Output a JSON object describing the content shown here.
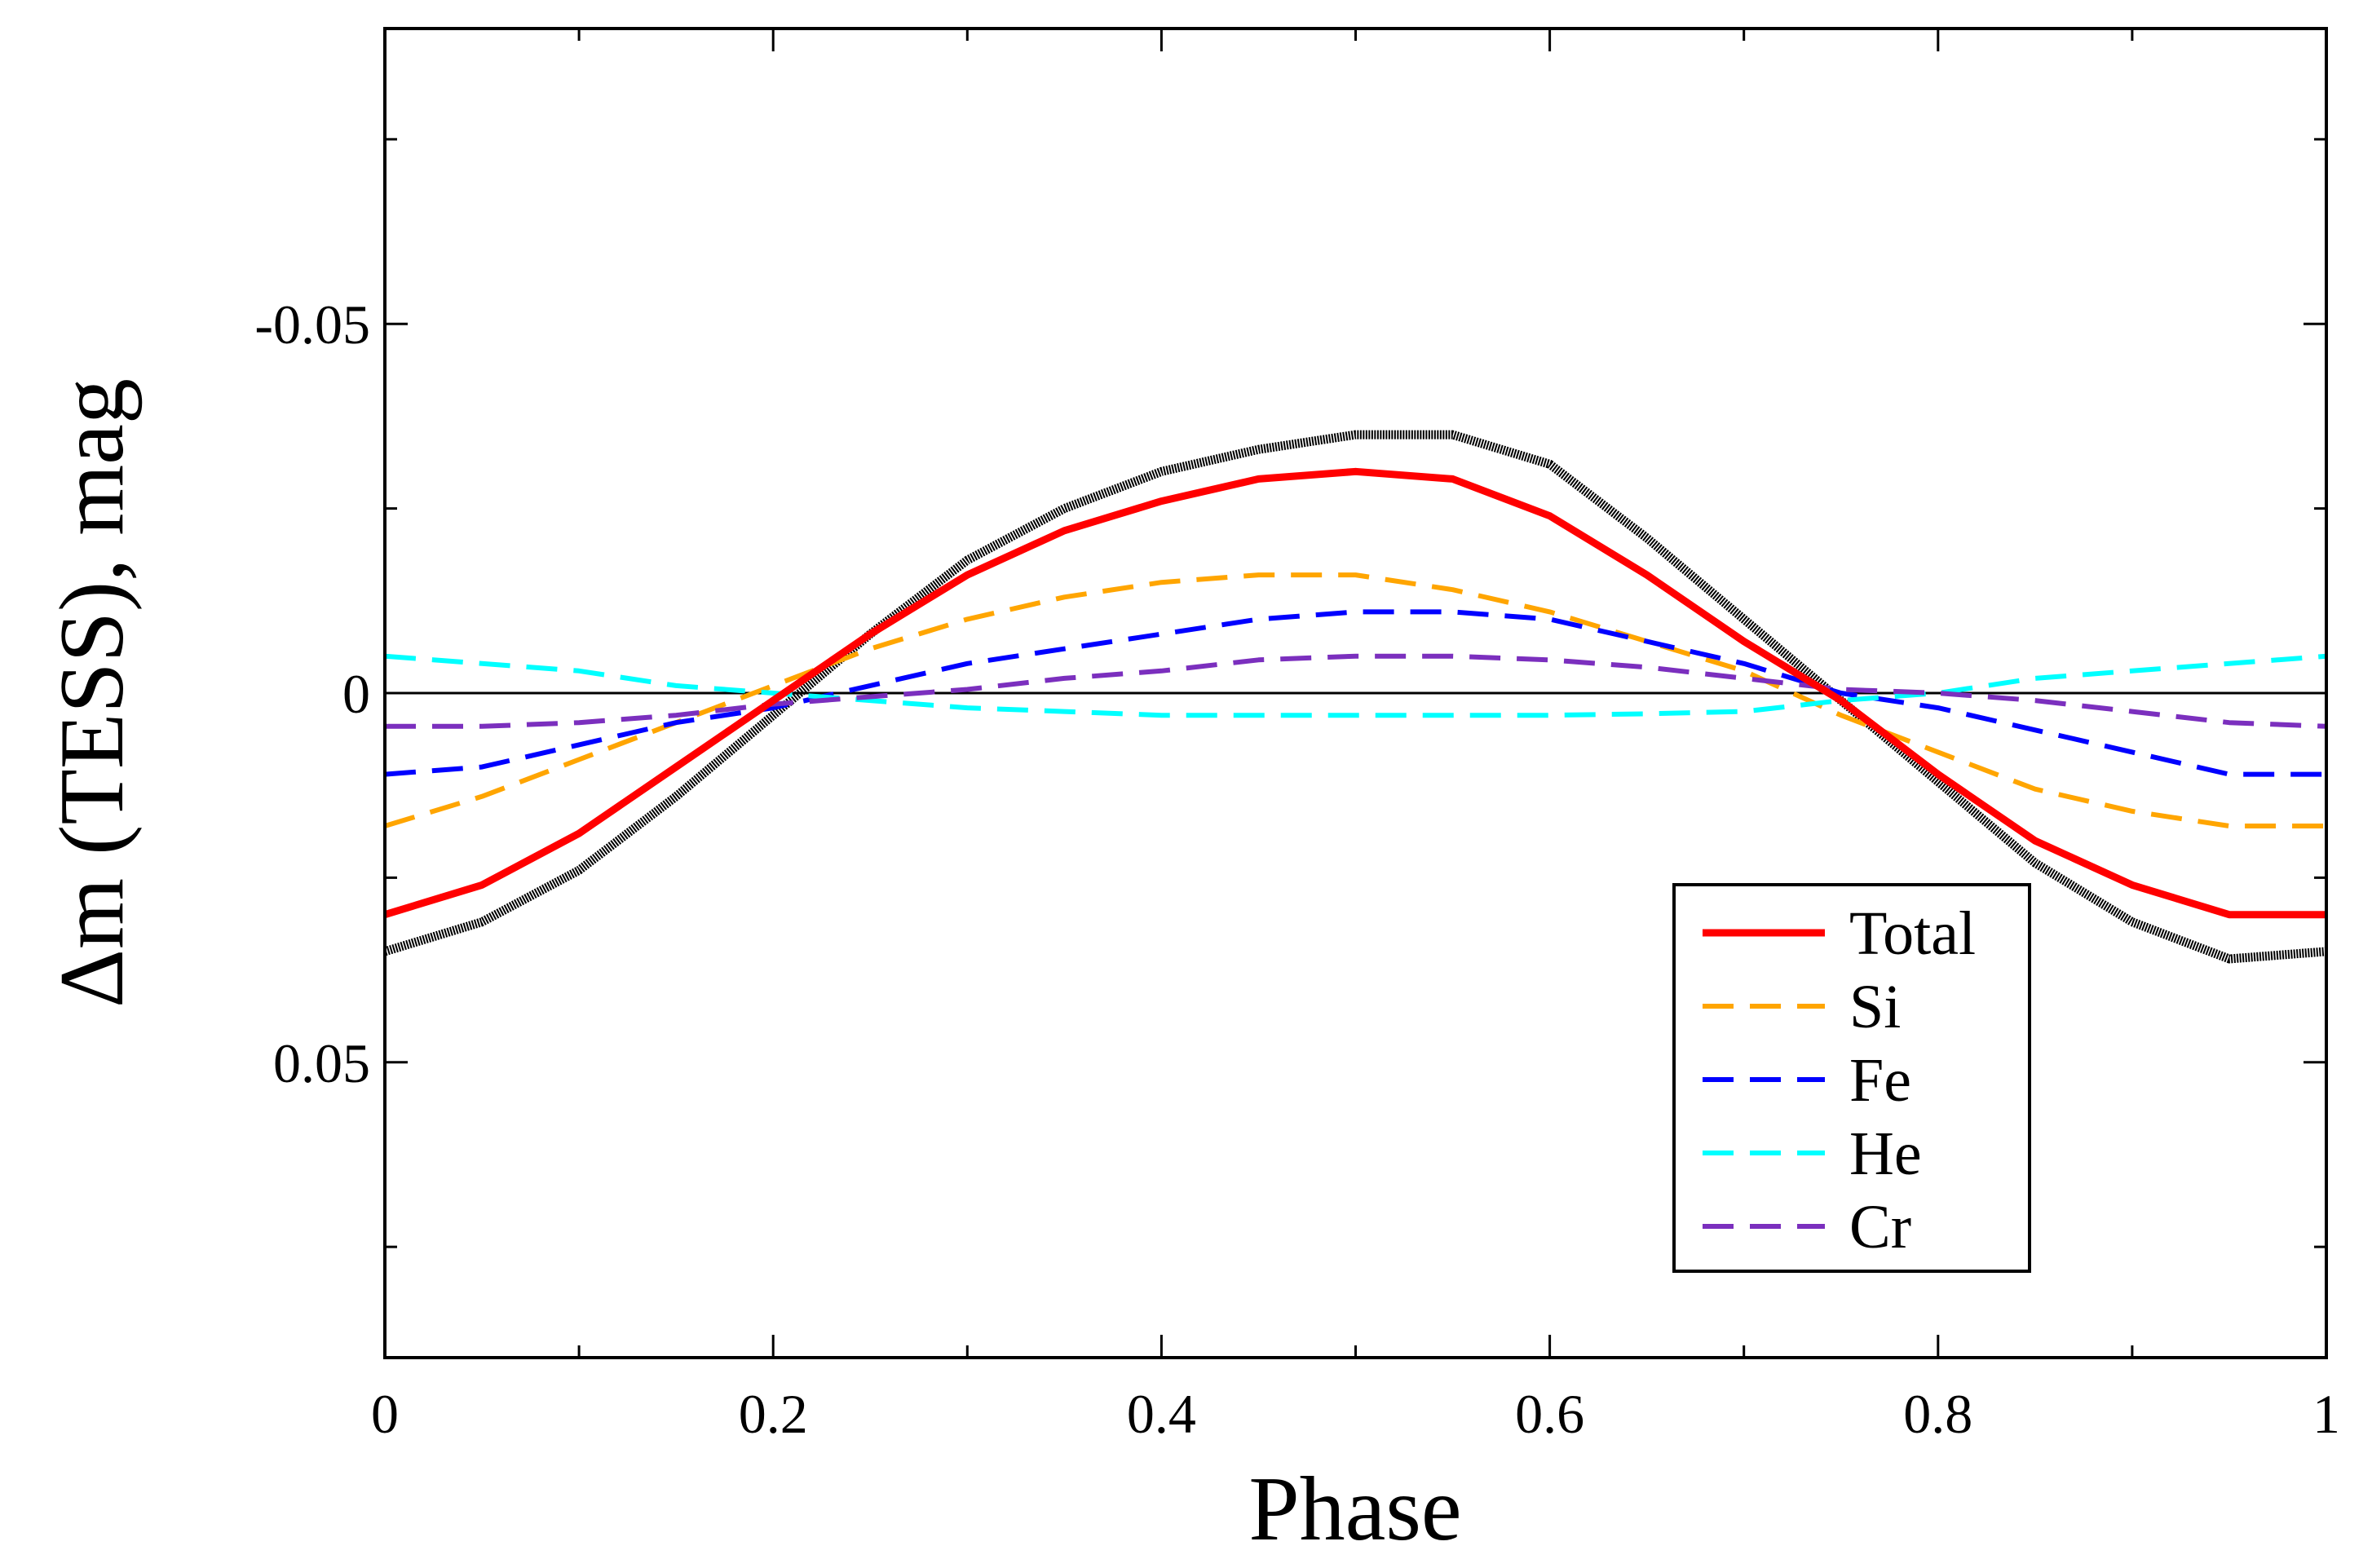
{
  "chart_data": {
    "type": "line",
    "xlabel": "Phase",
    "ylabel": "Δm (TESS), mag",
    "xlim": [
      0,
      1
    ],
    "ylim": [
      0.09,
      -0.09
    ],
    "y_inverted": true,
    "grid": false,
    "legend_position": "bottom-right",
    "xticks": [
      0,
      0.2,
      0.4,
      0.6,
      0.8,
      1
    ],
    "xtick_labels": [
      "0",
      "0.2",
      "0.4",
      "0.6",
      "0.8",
      "1"
    ],
    "xminor": [
      0.1,
      0.3,
      0.5,
      0.7,
      0.9
    ],
    "yticks": [
      -0.05,
      0,
      0.05
    ],
    "ytick_labels": [
      "-0.05",
      "0",
      "0.05"
    ],
    "yminor": [
      -0.075,
      -0.025,
      0.025,
      0.075
    ],
    "reference_line": 0,
    "observed": {
      "color": "#000000",
      "x": [
        0,
        0.05,
        0.1,
        0.15,
        0.2,
        0.25,
        0.3,
        0.35,
        0.4,
        0.45,
        0.5,
        0.55,
        0.6,
        0.65,
        0.7,
        0.75,
        0.8,
        0.85,
        0.9,
        0.95,
        1
      ],
      "y": [
        0.035,
        0.031,
        0.024,
        0.014,
        0.003,
        -0.008,
        -0.018,
        -0.025,
        -0.03,
        -0.033,
        -0.035,
        -0.035,
        -0.031,
        -0.021,
        -0.01,
        0.001,
        0.012,
        0.023,
        0.031,
        0.036,
        0.035
      ]
    },
    "series": [
      {
        "name": "Total",
        "color": "#ff0000",
        "style": "solid",
        "x": [
          0,
          0.05,
          0.1,
          0.15,
          0.2,
          0.25,
          0.3,
          0.35,
          0.4,
          0.45,
          0.5,
          0.55,
          0.6,
          0.65,
          0.7,
          0.75,
          0.8,
          0.85,
          0.9,
          0.95,
          1
        ],
        "y": [
          0.03,
          0.026,
          0.019,
          0.01,
          0.001,
          -0.008,
          -0.016,
          -0.022,
          -0.026,
          -0.029,
          -0.03,
          -0.029,
          -0.024,
          -0.016,
          -0.007,
          0.001,
          0.011,
          0.02,
          0.026,
          0.03,
          0.03
        ]
      },
      {
        "name": "Si",
        "color": "#ffa500",
        "style": "dashed",
        "x": [
          0,
          0.05,
          0.1,
          0.15,
          0.2,
          0.25,
          0.3,
          0.35,
          0.4,
          0.45,
          0.5,
          0.55,
          0.6,
          0.65,
          0.7,
          0.75,
          0.8,
          0.85,
          0.9,
          0.95,
          1
        ],
        "y": [
          0.018,
          0.014,
          0.009,
          0.004,
          -0.001,
          -0.006,
          -0.01,
          -0.013,
          -0.015,
          -0.016,
          -0.016,
          -0.014,
          -0.011,
          -0.007,
          -0.003,
          0.003,
          0.008,
          0.013,
          0.016,
          0.018,
          0.018
        ]
      },
      {
        "name": "Fe",
        "color": "#0000ff",
        "style": "dashed",
        "x": [
          0,
          0.05,
          0.1,
          0.15,
          0.2,
          0.25,
          0.3,
          0.35,
          0.4,
          0.45,
          0.5,
          0.55,
          0.6,
          0.65,
          0.7,
          0.75,
          0.8,
          0.85,
          0.9,
          0.95,
          1
        ],
        "y": [
          0.011,
          0.01,
          0.007,
          0.004,
          0.002,
          -0.001,
          -0.004,
          -0.006,
          -0.008,
          -0.01,
          -0.011,
          -0.011,
          -0.01,
          -0.007,
          -0.004,
          0,
          0.002,
          0.005,
          0.008,
          0.011,
          0.011
        ]
      },
      {
        "name": "He",
        "color": "#00ffff",
        "style": "dashed",
        "x": [
          0,
          0.05,
          0.1,
          0.15,
          0.2,
          0.25,
          0.3,
          0.35,
          0.4,
          0.45,
          0.5,
          0.55,
          0.6,
          0.65,
          0.7,
          0.75,
          0.8,
          0.85,
          0.9,
          0.95,
          1
        ],
        "y": [
          -0.005,
          -0.004,
          -0.003,
          -0.001,
          0,
          0.001,
          0.002,
          0.0025,
          0.003,
          0.003,
          0.003,
          0.003,
          0.003,
          0.0028,
          0.0025,
          0.001,
          0,
          -0.002,
          -0.003,
          -0.004,
          -0.005
        ]
      },
      {
        "name": "Cr",
        "color": "#7b2fbe",
        "style": "dashed",
        "x": [
          0,
          0.05,
          0.1,
          0.15,
          0.2,
          0.25,
          0.3,
          0.35,
          0.4,
          0.45,
          0.5,
          0.55,
          0.6,
          0.65,
          0.7,
          0.75,
          0.8,
          0.85,
          0.9,
          0.95,
          1
        ],
        "y": [
          0.0045,
          0.0045,
          0.004,
          0.003,
          0.0015,
          0.0005,
          -0.0005,
          -0.002,
          -0.003,
          -0.0045,
          -0.005,
          -0.005,
          -0.0045,
          -0.0035,
          -0.002,
          -0.0005,
          0,
          0.001,
          0.0025,
          0.004,
          0.0045
        ]
      }
    ]
  }
}
